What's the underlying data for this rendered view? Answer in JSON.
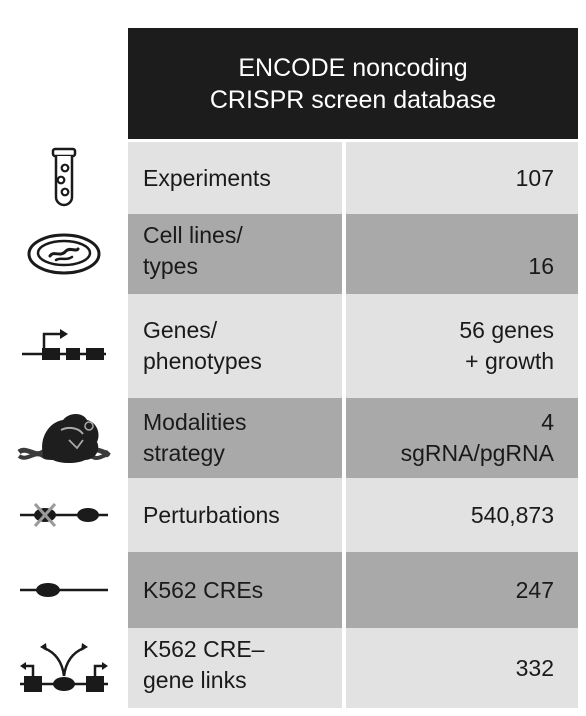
{
  "header": {
    "line1": "ENCODE noncoding",
    "line2": "CRISPR screen database"
  },
  "rows": [
    {
      "icon": "test-tube-icon",
      "label_lines": [
        "Experiments"
      ],
      "value_lines": [
        "107"
      ]
    },
    {
      "icon": "petri-dish-icon",
      "label_lines": [
        "Cell lines/",
        "types"
      ],
      "value_lines": [
        "16"
      ]
    },
    {
      "icon": "gene-arrow-icon",
      "label_lines": [
        "Genes/",
        "phenotypes"
      ],
      "value_lines": [
        "56 genes",
        "+ growth"
      ]
    },
    {
      "icon": "cas9-dna-icon",
      "label_lines": [
        "Modalities",
        "strategy"
      ],
      "value_lines": [
        "4",
        "sgRNA/pgRNA"
      ]
    },
    {
      "icon": "crossed-element-icon",
      "label_lines": [
        "Perturbations"
      ],
      "value_lines": [
        "540,873"
      ]
    },
    {
      "icon": "cre-element-icon",
      "label_lines": [
        "K562 CREs"
      ],
      "value_lines": [
        "247"
      ]
    },
    {
      "icon": "cre-gene-link-icon",
      "label_lines": [
        "K562 CRE–",
        "gene links"
      ],
      "value_lines": [
        "332"
      ]
    }
  ]
}
